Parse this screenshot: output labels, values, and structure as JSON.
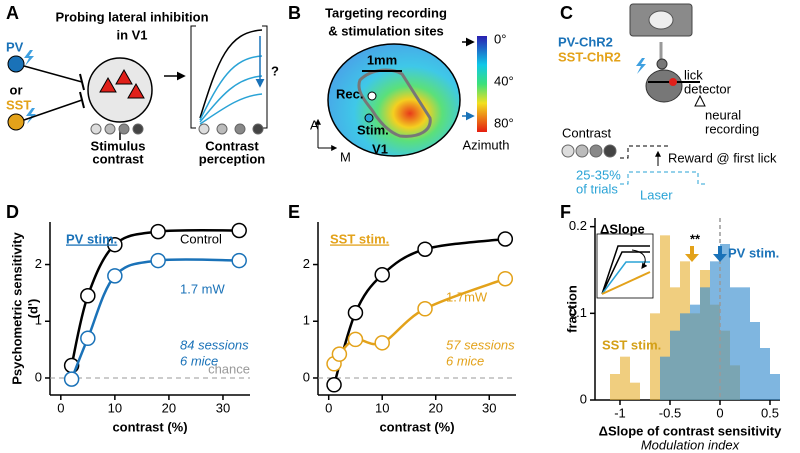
{
  "panel_labels": [
    "A",
    "B",
    "C",
    "D",
    "E",
    "F"
  ],
  "panel_a": {
    "title": [
      "Probing lateral inhibition",
      "in V1"
    ],
    "pv": "PV",
    "or": "or",
    "sst": "SST",
    "stimulus": [
      "Stimulus",
      "contrast"
    ],
    "perception": [
      "Contrast",
      "perception"
    ],
    "question": "?"
  },
  "panel_b": {
    "title": [
      "Targeting recording",
      "& stimulation sites"
    ],
    "scale": "1mm",
    "rec": "Rec.",
    "stim": "Stim.",
    "area": "V1",
    "axis_a": "A",
    "axis_m": "M",
    "colorbar_ticks": [
      "0°",
      "40°",
      "80°"
    ],
    "colorbar_label": "Azimuth"
  },
  "panel_c": {
    "opsins": [
      "PV-ChR2",
      "SST-ChR2"
    ],
    "lick": [
      "lick",
      "detector"
    ],
    "recording": [
      "neural",
      "recording"
    ],
    "contrast": "Contrast",
    "reward": "Reward @ first lick",
    "trials": [
      "25-35%",
      "of trials"
    ],
    "laser": "Laser"
  },
  "chart_data": [
    {
      "type": "line",
      "title": "PV stim.",
      "x_label": "contrast (%)",
      "y_label": [
        "Psychometric sensitivity",
        "(d')"
      ],
      "xlim": [
        -2,
        35
      ],
      "xticks": [
        0,
        10,
        20,
        30
      ],
      "ylim": [
        -0.3,
        2.75
      ],
      "yticks": [
        0,
        1,
        2
      ],
      "chance_line": {
        "value": 0,
        "label": "chance"
      },
      "series": [
        {
          "name": "Control",
          "color": "#000000",
          "x": [
            2,
            5,
            10,
            18,
            33
          ],
          "values": [
            0.22,
            1.45,
            2.35,
            2.58,
            2.6
          ]
        },
        {
          "name": "1.7 mW",
          "color": "#1a72b8",
          "x": [
            2,
            5,
            10,
            18,
            33
          ],
          "values": [
            -0.02,
            0.7,
            1.8,
            2.07,
            2.07
          ]
        }
      ],
      "annotations": [
        "84 sessions",
        "6 mice"
      ]
    },
    {
      "type": "line",
      "title": "SST stim.",
      "x_label": "contrast (%)",
      "xlim": [
        -2,
        35
      ],
      "xticks": [
        0,
        10,
        20,
        30
      ],
      "ylim": [
        -0.3,
        2.75
      ],
      "yticks": [
        0,
        1,
        2
      ],
      "chance_line": {
        "value": 0
      },
      "series": [
        {
          "color": "#000000",
          "x": [
            1,
            5,
            10,
            18,
            33
          ],
          "values": [
            -0.12,
            1.15,
            1.82,
            2.27,
            2.45
          ]
        },
        {
          "name": "1.7mW",
          "color": "#e3a21a",
          "x": [
            1,
            2,
            5,
            10,
            18,
            33
          ],
          "values": [
            0.25,
            0.42,
            0.68,
            0.62,
            1.22,
            1.75
          ]
        }
      ],
      "annotations": [
        "57 sessions",
        "6 mice"
      ]
    },
    {
      "type": "histogram",
      "title": "ΔSlope",
      "x_label": "ΔSlope of contrast sensitivity",
      "x_sublabel": "Modulation index",
      "y_label": "fraction",
      "xlim": [
        -1.25,
        0.6
      ],
      "xticks": [
        -1,
        -0.5,
        0,
        0.5
      ],
      "ylim": [
        0,
        0.21
      ],
      "yticks": [
        0,
        0.1,
        0.2
      ],
      "bins": [
        -1.1,
        -1.0,
        -0.9,
        -0.8,
        -0.7,
        -0.6,
        -0.5,
        -0.4,
        -0.3,
        -0.2,
        -0.1,
        0,
        0.1,
        0.2,
        0.3,
        0.4,
        0.5,
        0.6
      ],
      "reference_line_x": 0,
      "series": [
        {
          "name": "SST stim.",
          "color": "#e8b43a",
          "values": [
            0.03,
            0.05,
            0.02,
            0,
            0.1,
            0.19,
            0.13,
            0.16,
            0.1,
            0.15,
            0.11,
            0.08,
            0.04,
            0,
            0,
            0,
            0
          ]
        },
        {
          "name": "PV stim.",
          "color": "#3b8fd0",
          "values": [
            0,
            0,
            0,
            0,
            0,
            0.05,
            0.08,
            0.1,
            0.11,
            0.13,
            0.16,
            0.18,
            0.13,
            0.13,
            0.09,
            0.06,
            0.03
          ]
        }
      ],
      "arrows": [
        {
          "x": -0.28,
          "color": "#e3a21a"
        },
        {
          "x": 0,
          "color": "#1a72b8"
        }
      ],
      "annotations": [
        "**"
      ]
    }
  ]
}
